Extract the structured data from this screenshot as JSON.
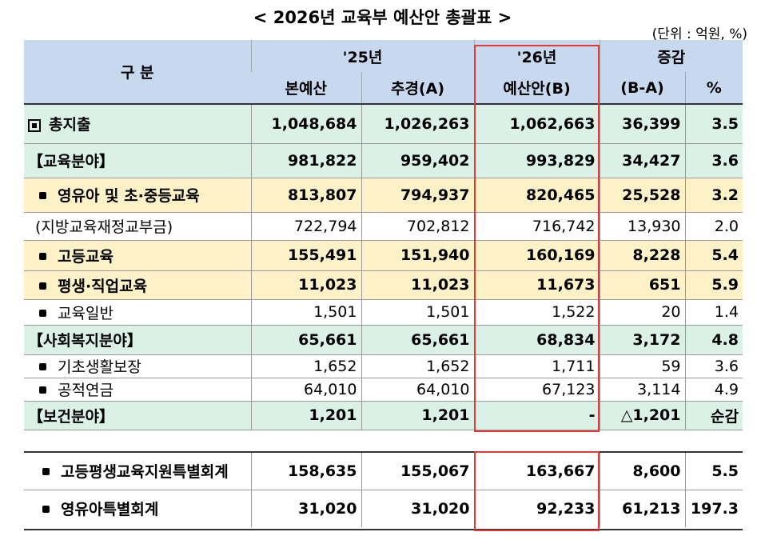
{
  "title": "< 2026년 교육부 예산안 총괄표 >",
  "unit": "(단위 : 억원, %)",
  "header": {
    "category": "구   분",
    "y25": "'25년",
    "y26": "'26년",
    "change": "증감",
    "original": "본예산",
    "supplementary": "추경(A)",
    "proposal": "예산안(B)",
    "diff": "(B-A)",
    "pct": "%"
  },
  "rows": [
    {
      "label": "총지출",
      "c1": "1,048,684",
      "c2": "1,026,263",
      "c3": "1,062,663",
      "c4": "36,399",
      "c5": "3.5"
    },
    {
      "label": "【교육분야】",
      "c1": "981,822",
      "c2": "959,402",
      "c3": "993,829",
      "c4": "34,427",
      "c5": "3.6"
    },
    {
      "label": "영유아 및 초·중등교육",
      "c1": "813,807",
      "c2": "794,937",
      "c3": "820,465",
      "c4": "25,528",
      "c5": "3.2"
    },
    {
      "label": "(지방교육재정교부금)",
      "c1": "722,794",
      "c2": "702,812",
      "c3": "716,742",
      "c4": "13,930",
      "c5": "2.0"
    },
    {
      "label": "고등교육",
      "c1": "155,491",
      "c2": "151,940",
      "c3": "160,169",
      "c4": "8,228",
      "c5": "5.4"
    },
    {
      "label": "평생·직업교육",
      "c1": "11,023",
      "c2": "11,023",
      "c3": "11,673",
      "c4": "651",
      "c5": "5.9"
    },
    {
      "label": "교육일반",
      "c1": "1,501",
      "c2": "1,501",
      "c3": "1,522",
      "c4": "20",
      "c5": "1.4"
    },
    {
      "label": "【사회복지분야】",
      "c1": "65,661",
      "c2": "65,661",
      "c3": "68,834",
      "c4": "3,172",
      "c5": "4.8"
    },
    {
      "label": "기초생활보장",
      "c1": "1,652",
      "c2": "1,652",
      "c3": "1,711",
      "c4": "59",
      "c5": "3.6"
    },
    {
      "label": "공적연금",
      "c1": "64,010",
      "c2": "64,010",
      "c3": "67,123",
      "c4": "3,114",
      "c5": "4.9"
    },
    {
      "label": "【보건분야】",
      "c1": "1,201",
      "c2": "1,201",
      "c3": "-",
      "c4": "△1,201",
      "c5": "순감"
    },
    {
      "label": "고등평생교육지원특별회계",
      "c1": "158,635",
      "c2": "155,067",
      "c3": "163,667",
      "c4": "8,600",
      "c5": "5.5"
    },
    {
      "label": "영유아특별회계",
      "c1": "31,020",
      "c2": "31,020",
      "c3": "92,233",
      "c4": "61,213",
      "c5": "197.3"
    }
  ]
}
